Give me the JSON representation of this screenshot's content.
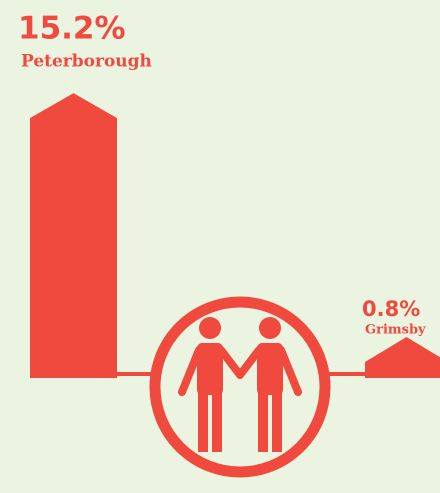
{
  "chart_data": {
    "type": "bar",
    "color": "#ef4a3d",
    "categories": [
      "Peterborough",
      "Grimsby"
    ],
    "values": [
      15.2,
      0.8
    ],
    "value_labels": [
      "15.2%",
      "0.8%"
    ]
  }
}
